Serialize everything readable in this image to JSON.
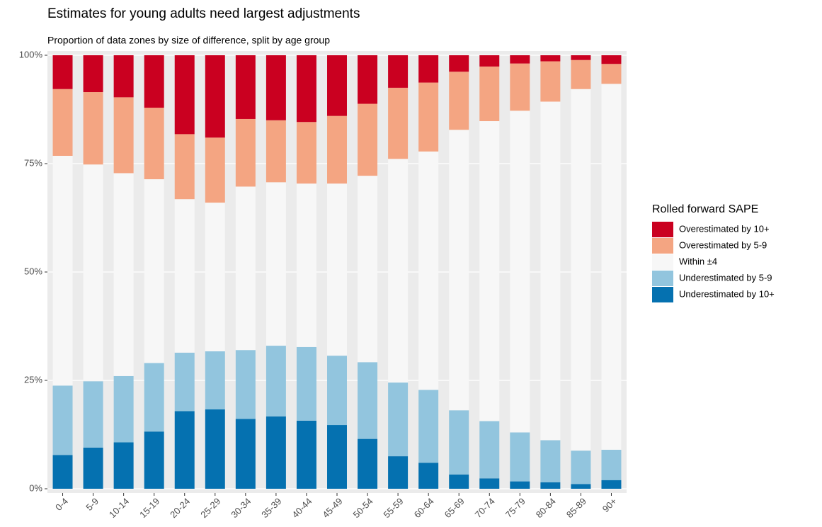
{
  "chart_data": {
    "type": "stacked_bar",
    "title": "Estimates for young adults need largest adjustments",
    "subtitle": "Proportion of data zones by size of difference, split by age group",
    "legend_title": "Rolled forward SAPE",
    "legend_position": "right",
    "grid": true,
    "categories": [
      "0-4",
      "5-9",
      "10-14",
      "15-19",
      "20-24",
      "25-29",
      "30-34",
      "35-39",
      "40-44",
      "45-49",
      "50-54",
      "55-59",
      "60-64",
      "65-69",
      "70-74",
      "75-79",
      "80-84",
      "85-89",
      "90+"
    ],
    "ylim": [
      0,
      100
    ],
    "yticks": [
      {
        "value": 0,
        "label": "0%"
      },
      {
        "value": 25,
        "label": "25%"
      },
      {
        "value": 50,
        "label": "50%"
      },
      {
        "value": 75,
        "label": "75%"
      },
      {
        "value": 100,
        "label": "100%"
      }
    ],
    "series": [
      {
        "name": "Overestimated by 10+",
        "color": "#ca0020",
        "values": [
          7.8,
          8.5,
          9.7,
          12.1,
          18.2,
          19.0,
          14.7,
          15.0,
          15.4,
          14.0,
          11.2,
          7.5,
          6.3,
          3.8,
          2.6,
          1.9,
          1.4,
          1.1,
          2.0
        ]
      },
      {
        "name": "Overestimated by 5-9",
        "color": "#f4a582",
        "values": [
          15.4,
          16.7,
          17.5,
          16.5,
          15.0,
          15.0,
          15.6,
          14.3,
          14.2,
          15.6,
          16.6,
          16.4,
          15.9,
          13.4,
          12.6,
          10.9,
          9.3,
          6.7,
          4.6
        ]
      },
      {
        "name": "Within ±4",
        "color": "#f7f7f7",
        "values": [
          53.0,
          50.0,
          46.8,
          42.4,
          35.4,
          34.3,
          37.7,
          37.7,
          37.7,
          39.7,
          43.0,
          51.6,
          55.0,
          64.7,
          69.2,
          74.2,
          78.1,
          83.4,
          84.4
        ]
      },
      {
        "name": "Underestimated by 5-9",
        "color": "#92c5de",
        "values": [
          16.0,
          15.3,
          15.3,
          15.8,
          13.5,
          13.4,
          15.9,
          16.3,
          17.0,
          16.0,
          17.7,
          17.0,
          16.8,
          14.8,
          13.2,
          11.3,
          9.7,
          7.7,
          7.0
        ]
      },
      {
        "name": "Underestimated by 10+",
        "color": "#0571b0",
        "values": [
          7.8,
          9.5,
          10.7,
          13.2,
          17.9,
          18.3,
          16.1,
          16.7,
          15.7,
          14.7,
          11.5,
          7.5,
          6.0,
          3.3,
          2.4,
          1.7,
          1.5,
          1.1,
          2.0
        ]
      }
    ]
  }
}
